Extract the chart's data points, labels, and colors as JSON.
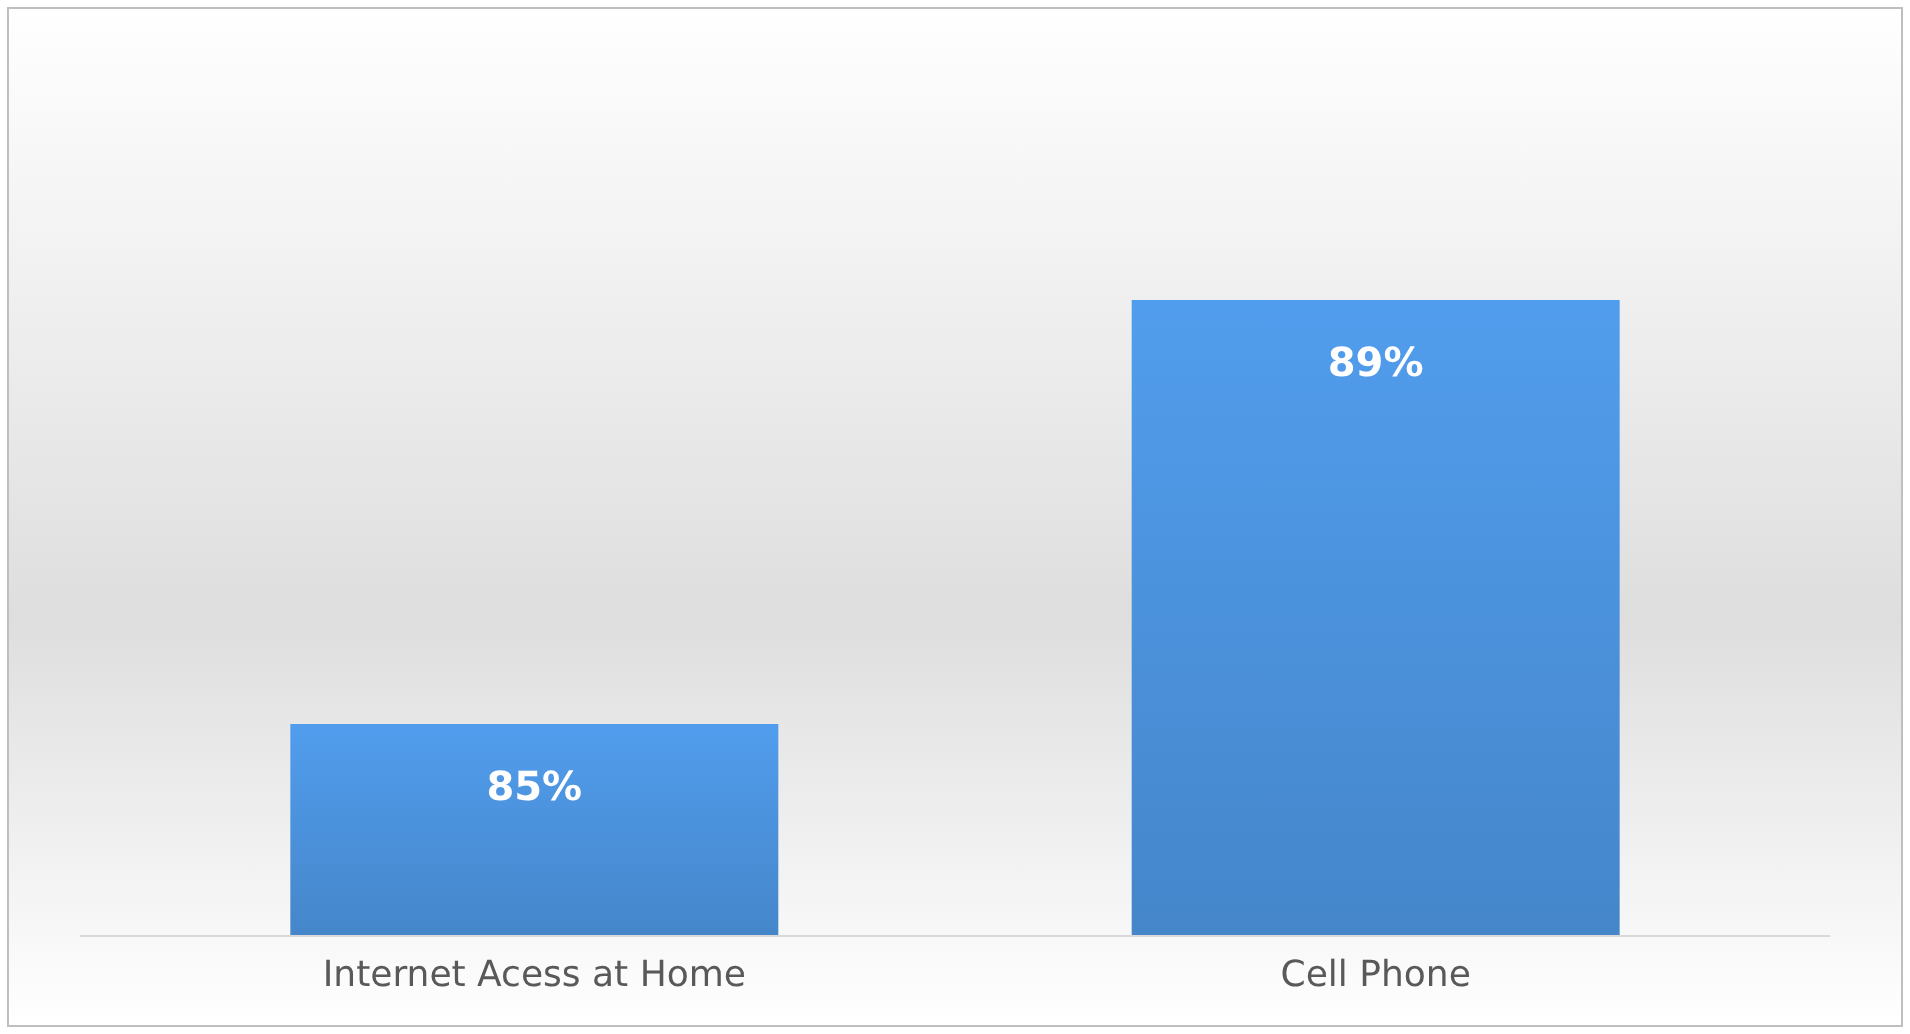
{
  "chart_data": {
    "type": "bar",
    "categories": [
      "Internet Acess at Home",
      "Cell Phone"
    ],
    "values": [
      85,
      89
    ],
    "value_labels": [
      "85%",
      "89%"
    ],
    "color": "#4a90d9",
    "ylim": [
      83,
      89
    ]
  }
}
